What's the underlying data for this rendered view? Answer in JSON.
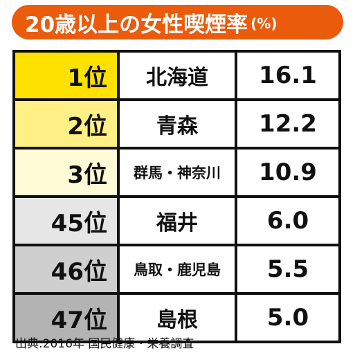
{
  "title": {
    "main": "20歳以上の女性喫煙率",
    "unit": "(%)"
  },
  "colors": {
    "title_bg": "#ea5b0c",
    "rank1_bg": "#ffe100",
    "rank2_bg": "#fff085",
    "rank3_bg": "#fffbd6",
    "rank45_bg": "#e6e6e6",
    "rank46_bg": "#cfcfcf",
    "rank47_bg": "#b3b3b3"
  },
  "chart_data": {
    "type": "table",
    "title": "20歳以上の女性喫煙率",
    "unit": "(%)",
    "columns": [
      "rank",
      "prefecture",
      "rate"
    ],
    "rows": [
      {
        "rank": "1位",
        "prefecture": "北海道",
        "value": "16.1"
      },
      {
        "rank": "2位",
        "prefecture": "青森",
        "value": "12.2"
      },
      {
        "rank": "3位",
        "prefecture": "群馬・神奈川",
        "value": "10.9"
      },
      {
        "rank": "45位",
        "prefecture": "福井",
        "value": "6.0"
      },
      {
        "rank": "46位",
        "prefecture": "鳥取・鹿児島",
        "value": "5.5"
      },
      {
        "rank": "47位",
        "prefecture": "島根",
        "value": "5.0"
      }
    ]
  },
  "source": "出典:2016年 国民健康・栄養調査"
}
